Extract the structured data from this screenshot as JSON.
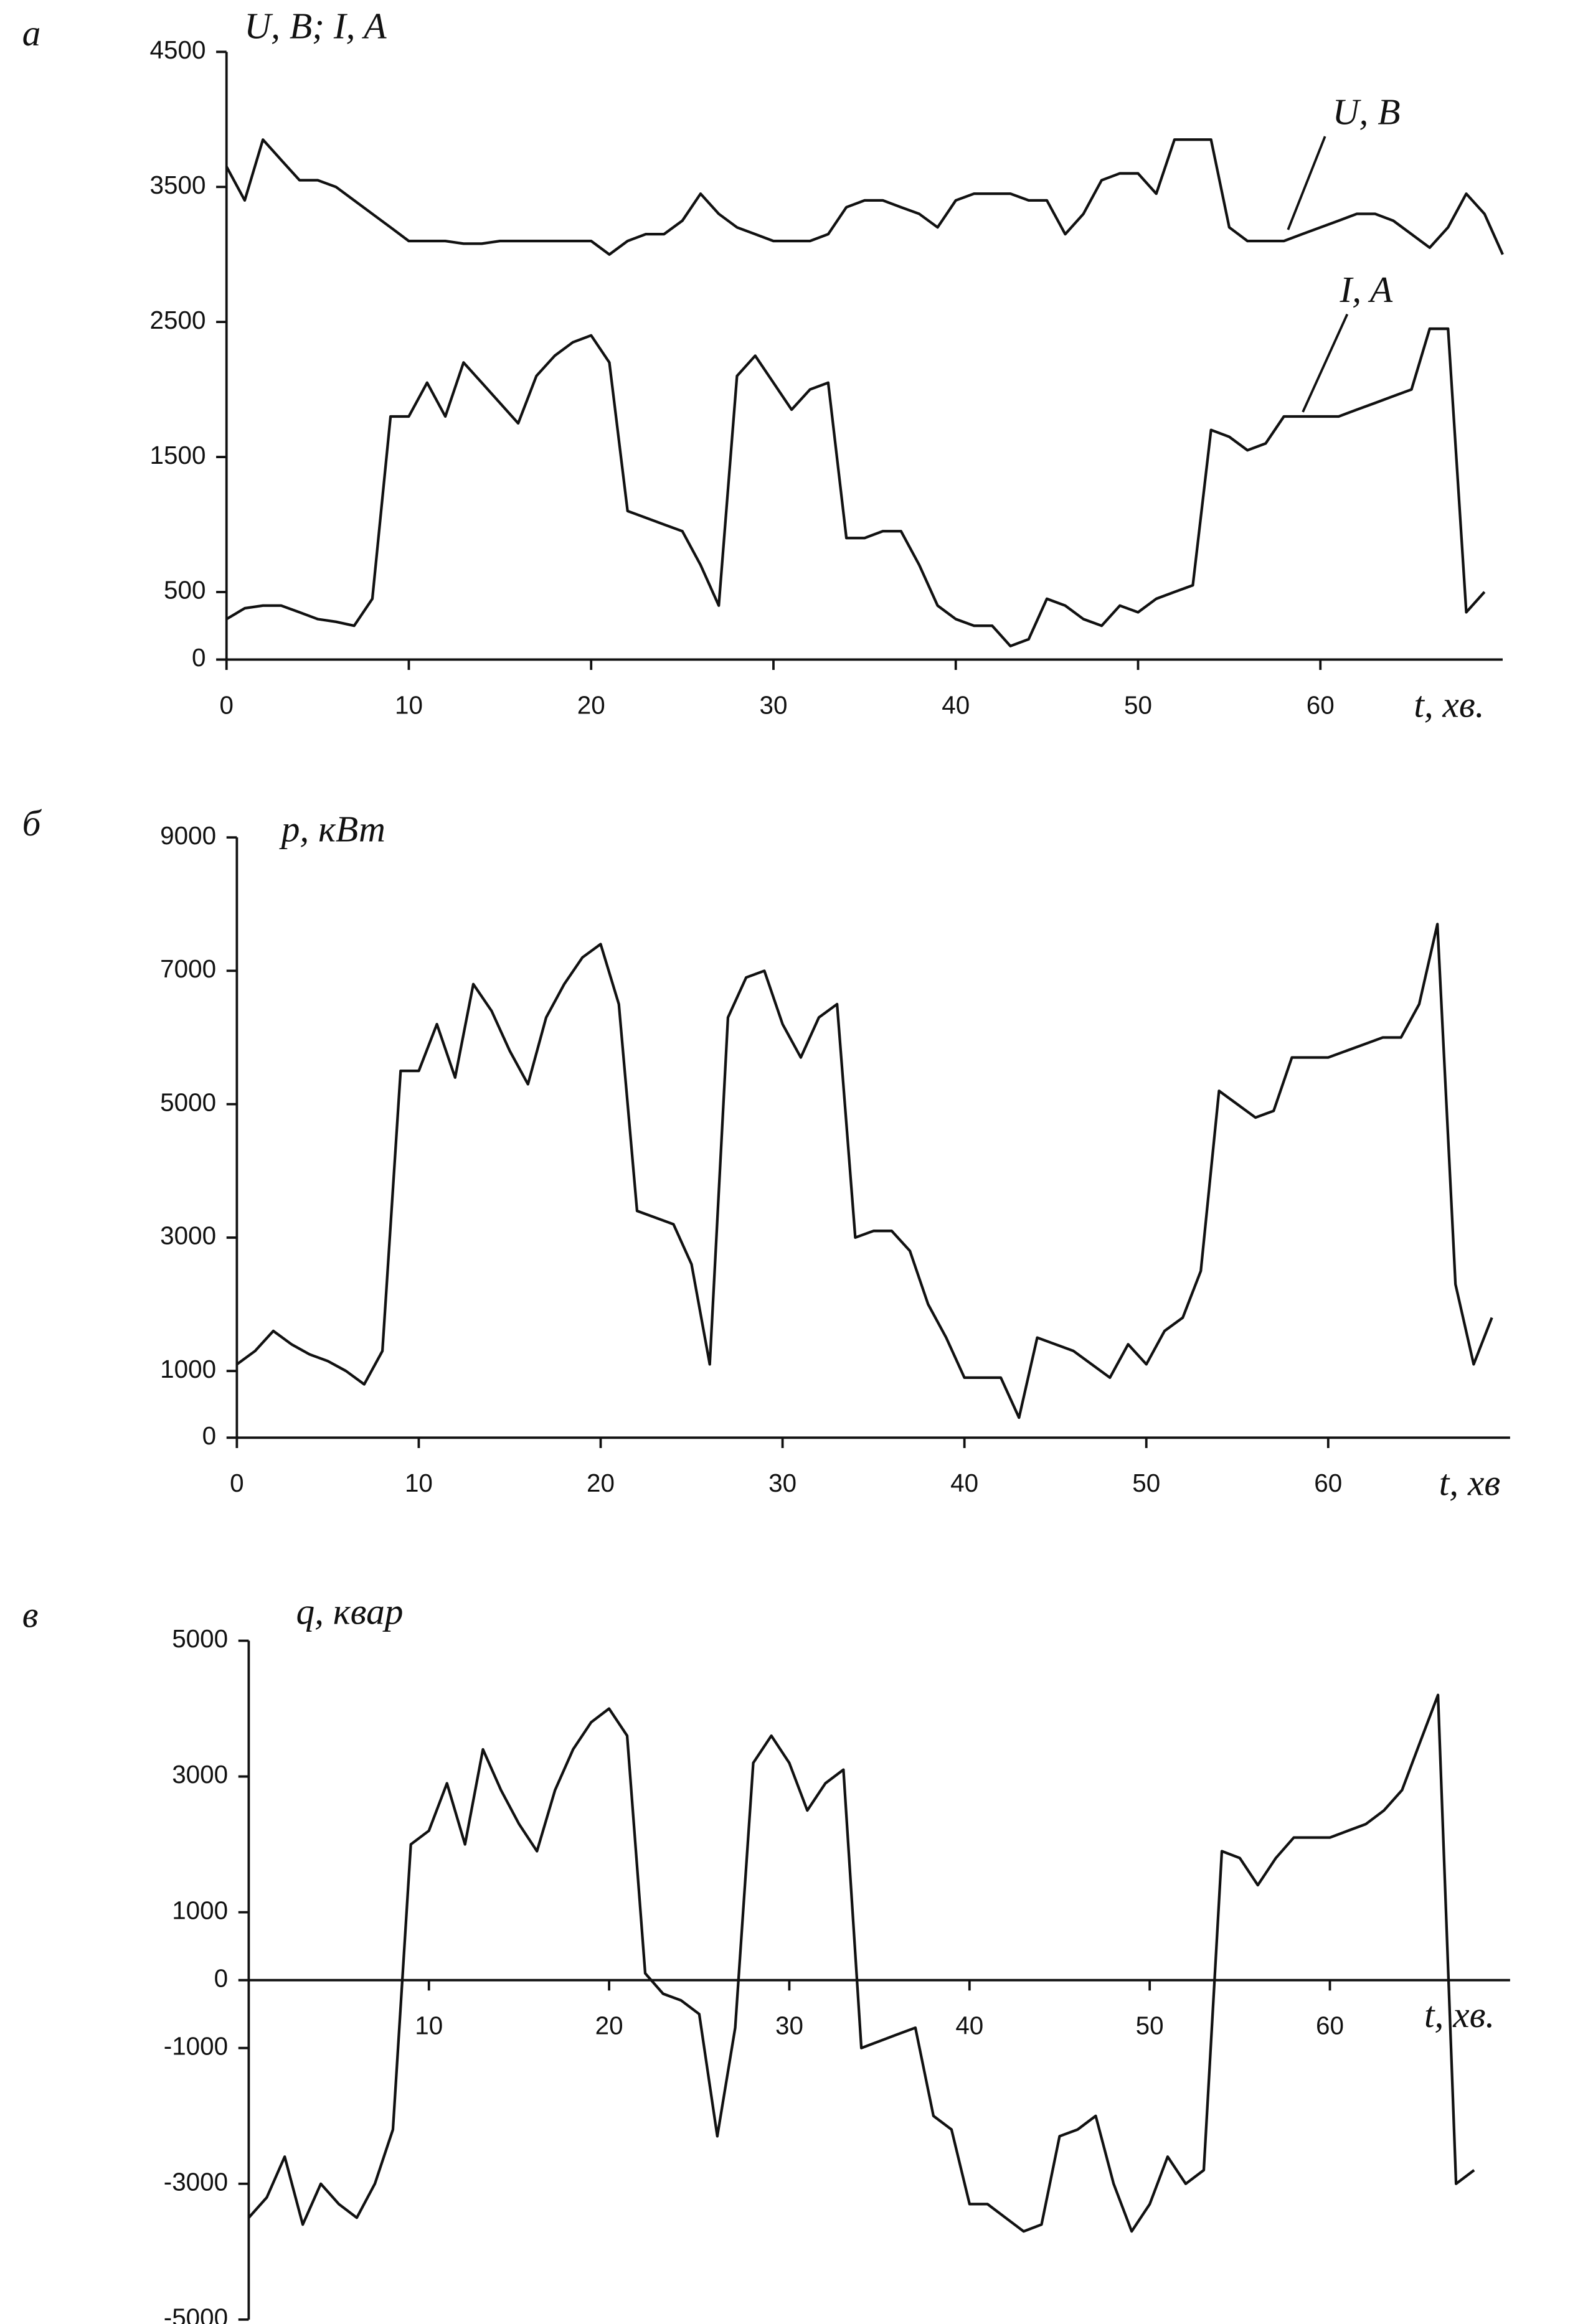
{
  "chart_data": [
    {
      "type": "line",
      "panel_label": "а",
      "ylabel": "U, B; I, A",
      "xlabel": "t, хв.",
      "xlim": [
        0,
        70
      ],
      "ylim": [
        0,
        4500
      ],
      "xticks": [
        0,
        10,
        20,
        30,
        40,
        50,
        60
      ],
      "yticks": [
        0,
        500,
        1500,
        2500,
        3500,
        4500
      ],
      "x": [
        0,
        1,
        2,
        3,
        4,
        5,
        6,
        7,
        8,
        9,
        10,
        11,
        12,
        13,
        14,
        15,
        16,
        17,
        18,
        19,
        20,
        21,
        22,
        23,
        24,
        25,
        26,
        27,
        28,
        29,
        30,
        31,
        32,
        33,
        34,
        35,
        36,
        37,
        38,
        39,
        40,
        41,
        42,
        43,
        44,
        45,
        46,
        47,
        48,
        49,
        50,
        51,
        52,
        53,
        54,
        55,
        56,
        57,
        58,
        59,
        60,
        61,
        62,
        63,
        64,
        65,
        66,
        67,
        68,
        69,
        70
      ],
      "series": [
        {
          "name": "U, B",
          "color": "#111111",
          "values": [
            3650,
            3400,
            3850,
            3700,
            3550,
            3550,
            3500,
            3400,
            3300,
            3200,
            3100,
            3100,
            3100,
            3080,
            3080,
            3100,
            3100,
            3100,
            3100,
            3100,
            3100,
            3000,
            3100,
            3150,
            3150,
            3250,
            3450,
            3300,
            3200,
            3150,
            3100,
            3100,
            3100,
            3150,
            3350,
            3400,
            3400,
            3350,
            3300,
            3200,
            3400,
            3450,
            3450,
            3450,
            3400,
            3400,
            3150,
            3300,
            3550,
            3600,
            3600,
            3450,
            3850,
            3850,
            3850,
            3200,
            3100,
            3100,
            3100,
            3150,
            3200,
            3250,
            3300,
            3300,
            3250,
            3150,
            3050,
            3200,
            3450,
            3300,
            3000
          ]
        },
        {
          "name": "I, A",
          "color": "#111111",
          "values": [
            300,
            380,
            400,
            400,
            350,
            300,
            280,
            250,
            450,
            1800,
            1800,
            2050,
            1800,
            2200,
            2050,
            1900,
            1750,
            2100,
            2250,
            2350,
            2400,
            2200,
            1100,
            1050,
            1000,
            950,
            700,
            400,
            2100,
            2250,
            2050,
            1850,
            2000,
            2050,
            900,
            900,
            950,
            950,
            700,
            400,
            300,
            250,
            250,
            100,
            150,
            450,
            400,
            300,
            250,
            400,
            350,
            450,
            500,
            550,
            1700,
            1650,
            1550,
            1600,
            1800,
            1800,
            1800,
            1800,
            1850,
            1900,
            1950,
            2000,
            2450,
            2450,
            350,
            500,
            null
          ]
        }
      ]
    },
    {
      "type": "line",
      "panel_label": "б",
      "ylabel": "p, кВт",
      "xlabel": "t, хв",
      "xlim": [
        0,
        70
      ],
      "ylim": [
        0,
        9000
      ],
      "xticks": [
        0,
        10,
        20,
        30,
        40,
        50,
        60
      ],
      "yticks": [
        0,
        1000,
        3000,
        5000,
        7000,
        9000
      ],
      "x": [
        0,
        1,
        2,
        3,
        4,
        5,
        6,
        7,
        8,
        9,
        10,
        11,
        12,
        13,
        14,
        15,
        16,
        17,
        18,
        19,
        20,
        21,
        22,
        23,
        24,
        25,
        26,
        27,
        28,
        29,
        30,
        31,
        32,
        33,
        34,
        35,
        36,
        37,
        38,
        39,
        40,
        41,
        42,
        43,
        44,
        45,
        46,
        47,
        48,
        49,
        50,
        51,
        52,
        53,
        54,
        55,
        56,
        57,
        58,
        59,
        60,
        61,
        62,
        63,
        64,
        65,
        66,
        67,
        68,
        69,
        70
      ],
      "series": [
        {
          "name": "p",
          "color": "#111111",
          "values": [
            1100,
            1300,
            1600,
            1400,
            1250,
            1150,
            1000,
            800,
            1300,
            5500,
            5500,
            6200,
            5400,
            6800,
            6400,
            5800,
            5300,
            6300,
            6800,
            7200,
            7400,
            6500,
            3400,
            3300,
            3200,
            2600,
            1100,
            6300,
            6900,
            7000,
            6200,
            5700,
            6300,
            6500,
            3000,
            3100,
            3100,
            2800,
            2000,
            1500,
            900,
            900,
            900,
            300,
            1500,
            1400,
            1300,
            1100,
            900,
            1400,
            1100,
            1600,
            1800,
            2500,
            5200,
            5000,
            4800,
            4900,
            5700,
            5700,
            5700,
            5800,
            5900,
            6000,
            6000,
            6500,
            7700,
            2300,
            1100,
            1800,
            null
          ]
        }
      ]
    },
    {
      "type": "line",
      "panel_label": "в",
      "ylabel": "q, квар",
      "xlabel": "t, хв.",
      "xlim": [
        0,
        70
      ],
      "ylim": [
        -5000,
        5000
      ],
      "xticks": [
        10,
        20,
        30,
        40,
        50,
        60
      ],
      "yticks": [
        -5000,
        -3000,
        -1000,
        0,
        1000,
        3000,
        5000
      ],
      "x": [
        0,
        1,
        2,
        3,
        4,
        5,
        6,
        7,
        8,
        9,
        10,
        11,
        12,
        13,
        14,
        15,
        16,
        17,
        18,
        19,
        20,
        21,
        22,
        23,
        24,
        25,
        26,
        27,
        28,
        29,
        30,
        31,
        32,
        33,
        34,
        35,
        36,
        37,
        38,
        39,
        40,
        41,
        42,
        43,
        44,
        45,
        46,
        47,
        48,
        49,
        50,
        51,
        52,
        53,
        54,
        55,
        56,
        57,
        58,
        59,
        60,
        61,
        62,
        63,
        64,
        65,
        66,
        67,
        68,
        69,
        70
      ],
      "series": [
        {
          "name": "q",
          "color": "#111111",
          "values": [
            -3500,
            -3200,
            -2600,
            -3600,
            -3000,
            -3300,
            -3500,
            -3000,
            -2200,
            2000,
            2200,
            2900,
            2000,
            3400,
            2800,
            2300,
            1900,
            2800,
            3400,
            3800,
            4000,
            3600,
            100,
            -200,
            -300,
            -500,
            -2300,
            -700,
            3200,
            3600,
            3200,
            2500,
            2900,
            3100,
            -1000,
            -900,
            -800,
            -700,
            -2000,
            -2200,
            -3300,
            -3300,
            -3500,
            -3700,
            -3600,
            -2300,
            -2200,
            -2000,
            -3000,
            -3700,
            -3300,
            -2600,
            -3000,
            -2800,
            1900,
            1800,
            1400,
            1800,
            2100,
            2100,
            2100,
            2200,
            2300,
            2500,
            2800,
            3500,
            4200,
            -3000,
            -2800,
            null,
            null
          ]
        }
      ]
    }
  ]
}
